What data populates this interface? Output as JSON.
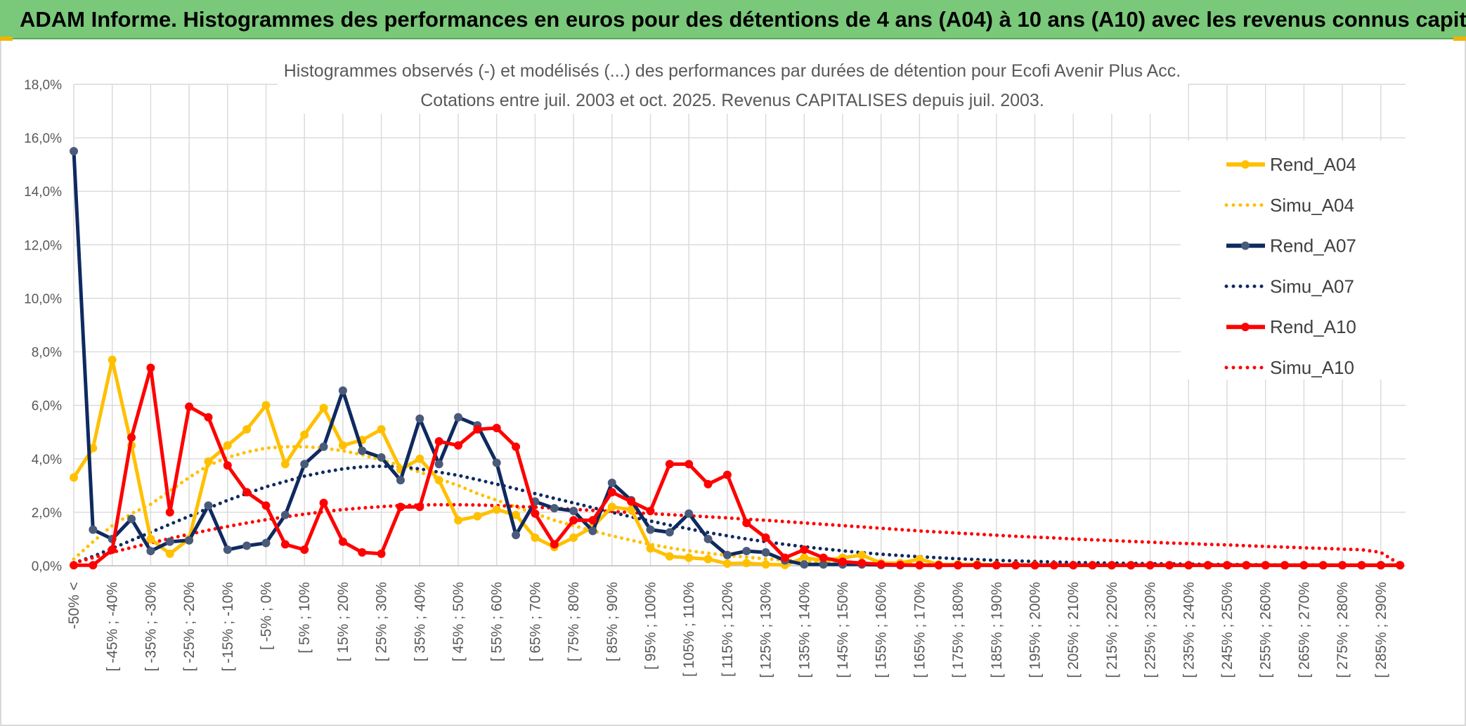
{
  "banner": {
    "title": "ADAM Informe. Histogrammes des performances en euros pour des détentions de 4 ans (A04) à 10 ans (A10) avec les revenus connus capitalisés"
  },
  "chart_data": {
    "type": "line",
    "title": "Histogrammes observés (-) et modélisés (...) des performances par durées de détention pour Ecofi Avenir Plus Acc.",
    "subtitle": "Cotations entre juil. 2003 et oct. 2025. Revenus CAPITALISES depuis juil. 2003.",
    "xlabel": "",
    "ylabel": "",
    "ylim": [
      0,
      18
    ],
    "y_ticks": [
      "0,0%",
      "2,0%",
      "4,0%",
      "6,0%",
      "8,0%",
      "10,0%",
      "12,0%",
      "14,0%",
      "16,0%",
      "18,0%"
    ],
    "y_tick_values": [
      0,
      2,
      4,
      6,
      8,
      10,
      12,
      14,
      16,
      18
    ],
    "grid": true,
    "legend_position": "right",
    "x_tick_labels": [
      "-50% <",
      "[ -45% ; -40%",
      "[ -35% ; -30%",
      "[ -25% ; -20%",
      "[ -15% ; -10%",
      "[ -5% ; 0%",
      "[ 5% ; 10%",
      "[ 15% ; 20%",
      "[ 25% ; 30%",
      "[ 35% ; 40%",
      "[ 45% ; 50%",
      "[ 55% ; 60%",
      "[ 65% ; 70%",
      "[ 75% ; 80%",
      "[ 85% ; 90%",
      "[ 95% ; 100%",
      "[ 105% ; 110%",
      "[ 115% ; 120%",
      "[ 125% ; 130%",
      "[ 135% ; 140%",
      "[ 145% ; 150%",
      "[ 155% ; 160%",
      "[ 165% ; 170%",
      "[ 175% ; 180%",
      "[ 185% ; 190%",
      "[ 195% ; 200%",
      "[ 205% ; 210%",
      "[ 215% ; 220%",
      "[ 225% ; 230%",
      "[ 235% ; 240%",
      "[ 245% ; 250%",
      "[ 255% ; 260%",
      "[ 265% ; 270%",
      "[ 275% ; 280%",
      "[ 285% ; 290%"
    ],
    "x_tick_indices": [
      0,
      2,
      4,
      6,
      8,
      10,
      12,
      14,
      16,
      18,
      20,
      22,
      24,
      26,
      28,
      30,
      32,
      34,
      36,
      38,
      40,
      42,
      44,
      46,
      48,
      50,
      52,
      54,
      56,
      58,
      60,
      62,
      64,
      66,
      68
    ],
    "num_bins": 70,
    "series": [
      {
        "name": "Rend_A04",
        "style": "solid",
        "color": "#ffc000",
        "markers": true,
        "values": [
          3.3,
          4.4,
          7.7,
          4.5,
          1.0,
          0.45,
          1.0,
          3.9,
          4.5,
          5.1,
          6.0,
          3.8,
          4.9,
          5.9,
          4.5,
          4.7,
          5.1,
          3.6,
          4.0,
          3.2,
          1.7,
          1.85,
          2.1,
          1.9,
          1.05,
          0.7,
          1.05,
          1.45,
          2.2,
          2.1,
          0.65,
          0.35,
          0.3,
          0.25,
          0.08,
          0.1,
          0.05,
          0.03,
          0.3,
          0.2,
          0.3,
          0.4,
          0.1,
          0.1,
          0.25,
          0.05,
          0.05,
          0.05,
          0.03,
          0.03,
          0.03,
          0.02,
          0.02,
          0.02,
          0.02,
          0.02,
          0.02,
          0.02,
          0.02,
          0.02,
          0.02,
          0.02,
          0.02,
          0.02,
          0.02,
          0.02,
          0.02,
          0.02,
          0.02,
          0.02
        ]
      },
      {
        "name": "Simu_A04",
        "style": "dotted",
        "color": "#ffc000",
        "markers": false,
        "values": [
          0.25,
          0.9,
          1.5,
          1.95,
          2.3,
          2.8,
          3.3,
          3.75,
          4.05,
          4.25,
          4.4,
          4.45,
          4.45,
          4.4,
          4.3,
          4.15,
          3.95,
          3.75,
          3.5,
          3.25,
          3.0,
          2.7,
          2.45,
          2.2,
          1.95,
          1.7,
          1.5,
          1.3,
          1.12,
          0.95,
          0.8,
          0.67,
          0.56,
          0.47,
          0.39,
          0.32,
          0.26,
          0.21,
          0.17,
          0.14,
          0.11,
          0.09,
          0.07,
          0.06,
          0.05,
          0.04,
          0.03,
          0.02,
          0.02,
          0.01,
          0.01,
          0.01,
          0.01,
          0.01,
          0.01,
          0.01,
          0.01,
          0.01,
          0.01,
          0.01,
          0.01,
          0.01,
          0.01,
          0.01,
          0.01,
          0.01,
          0.01,
          0.01,
          0.01,
          0.01
        ]
      },
      {
        "name": "Rend_A07",
        "style": "solid",
        "color": "#0f2a5f",
        "markers": true,
        "values": [
          15.5,
          1.35,
          1.0,
          1.75,
          0.55,
          0.9,
          0.95,
          2.25,
          0.6,
          0.75,
          0.85,
          1.9,
          3.8,
          4.45,
          6.55,
          4.3,
          4.05,
          3.2,
          5.5,
          3.8,
          5.55,
          5.25,
          3.85,
          1.15,
          2.4,
          2.15,
          2.05,
          1.3,
          3.1,
          2.45,
          1.35,
          1.25,
          1.95,
          1.0,
          0.4,
          0.55,
          0.5,
          0.2,
          0.05,
          0.05,
          0.05,
          0.05,
          0.03,
          0.02,
          0.02,
          0.02,
          0.02,
          0.02,
          0.02,
          0.02,
          0.02,
          0.02,
          0.02,
          0.02,
          0.02,
          0.02,
          0.02,
          0.02,
          0.02,
          0.02,
          0.02,
          0.02,
          0.02,
          0.02,
          0.02,
          0.02,
          0.02,
          0.02,
          0.02,
          0.02
        ]
      },
      {
        "name": "Simu_A07",
        "style": "dotted",
        "color": "#0f2a5f",
        "markers": false,
        "values": [
          0.1,
          0.35,
          0.65,
          0.95,
          1.25,
          1.55,
          1.85,
          2.15,
          2.45,
          2.7,
          2.95,
          3.15,
          3.35,
          3.5,
          3.62,
          3.7,
          3.72,
          3.7,
          3.62,
          3.5,
          3.38,
          3.22,
          3.05,
          2.88,
          2.7,
          2.52,
          2.35,
          2.17,
          2.0,
          1.83,
          1.67,
          1.52,
          1.38,
          1.24,
          1.12,
          1.0,
          0.9,
          0.8,
          0.71,
          0.63,
          0.56,
          0.49,
          0.43,
          0.38,
          0.34,
          0.3,
          0.26,
          0.23,
          0.2,
          0.18,
          0.16,
          0.14,
          0.12,
          0.11,
          0.1,
          0.09,
          0.08,
          0.07,
          0.06,
          0.05,
          0.05,
          0.04,
          0.04,
          0.03,
          0.03,
          0.03,
          0.02,
          0.02,
          0.02,
          0.02
        ]
      },
      {
        "name": "Rend_A10",
        "style": "solid",
        "color": "#ff0000",
        "markers": true,
        "values": [
          0.02,
          0.02,
          0.6,
          4.8,
          7.4,
          2.0,
          5.95,
          5.55,
          3.75,
          2.75,
          2.25,
          0.8,
          0.6,
          2.35,
          0.9,
          0.5,
          0.45,
          2.2,
          2.2,
          4.65,
          4.5,
          5.1,
          5.15,
          4.45,
          1.95,
          0.8,
          1.7,
          1.7,
          2.75,
          2.4,
          2.05,
          3.8,
          3.8,
          3.05,
          3.4,
          1.6,
          1.05,
          0.3,
          0.6,
          0.3,
          0.15,
          0.1,
          0.05,
          0.03,
          0.02,
          0.02,
          0.02,
          0.02,
          0.02,
          0.02,
          0.02,
          0.02,
          0.02,
          0.02,
          0.02,
          0.02,
          0.02,
          0.02,
          0.02,
          0.02,
          0.02,
          0.02,
          0.02,
          0.02,
          0.02,
          0.02,
          0.02,
          0.02,
          0.02,
          0.02
        ]
      },
      {
        "name": "Simu_A10",
        "style": "dotted",
        "color": "#ff0000",
        "markers": false,
        "values": [
          0.1,
          0.3,
          0.5,
          0.68,
          0.85,
          1.02,
          1.18,
          1.33,
          1.47,
          1.6,
          1.72,
          1.83,
          1.93,
          2.02,
          2.1,
          2.16,
          2.21,
          2.25,
          2.27,
          2.28,
          2.28,
          2.27,
          2.25,
          2.22,
          2.19,
          2.15,
          2.11,
          2.07,
          2.03,
          1.99,
          1.95,
          1.91,
          1.87,
          1.83,
          1.79,
          1.74,
          1.7,
          1.65,
          1.6,
          1.55,
          1.5,
          1.45,
          1.4,
          1.35,
          1.3,
          1.26,
          1.22,
          1.18,
          1.14,
          1.1,
          1.07,
          1.04,
          1.0,
          0.97,
          0.94,
          0.91,
          0.88,
          0.85,
          0.83,
          0.8,
          0.78,
          0.75,
          0.72,
          0.7,
          0.67,
          0.65,
          0.62,
          0.6,
          0.5,
          0.05
        ]
      }
    ]
  }
}
